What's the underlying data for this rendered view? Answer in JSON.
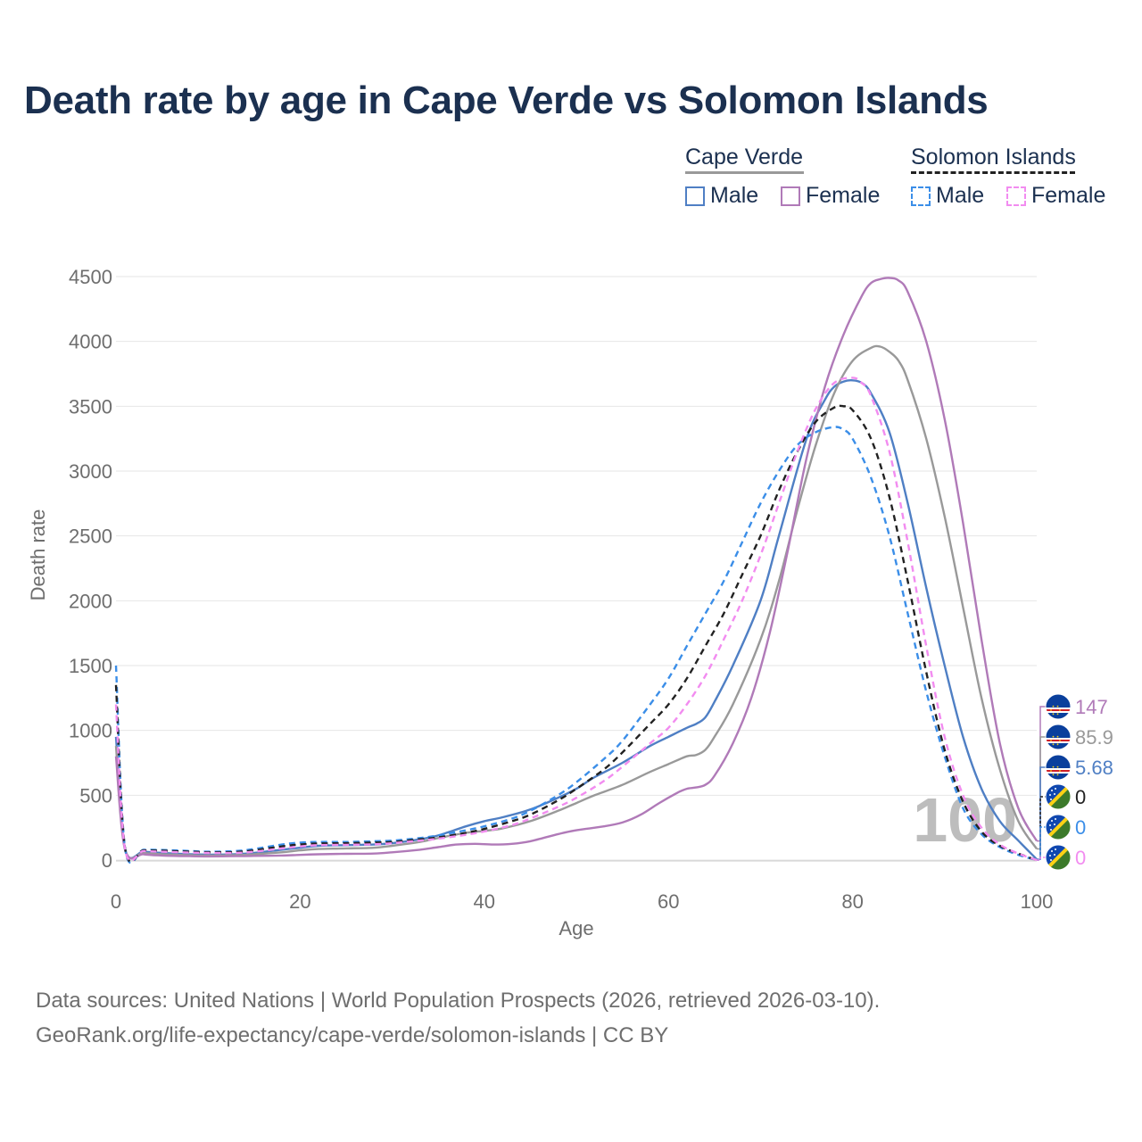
{
  "title": "Death rate by age in Cape Verde vs Solomon Islands",
  "legend": {
    "groups": [
      {
        "name": "Cape Verde",
        "line_color": "#999999",
        "dashed": false,
        "entries": [
          {
            "label": "Male",
            "color": "#4f7fc4"
          },
          {
            "label": "Female",
            "color": "#b07ab8"
          }
        ]
      },
      {
        "name": "Solomon Islands",
        "line_color": "#222222",
        "dashed": true,
        "entries": [
          {
            "label": "Male",
            "color": "#3b8ee8"
          },
          {
            "label": "Female",
            "color": "#f28cf0"
          }
        ]
      }
    ]
  },
  "footer": {
    "line1": "Data sources: United Nations | World Population Prospects (2026, retrieved 2026-03-10).",
    "line2": "GeoRank.org/life-expectancy/cape-verde/solomon-islands | CC BY"
  },
  "chart_data": {
    "type": "line",
    "title": "Death rate by age in Cape Verde vs Solomon Islands",
    "xlabel": "Age",
    "ylabel": "Death rate",
    "xlim": [
      0,
      100
    ],
    "ylim": [
      0,
      4500
    ],
    "xticks": [
      0,
      20,
      40,
      60,
      80,
      100
    ],
    "yticks": [
      0,
      500,
      1000,
      1500,
      2000,
      2500,
      3000,
      3500,
      4000,
      4500
    ],
    "grid": true,
    "watermark_age": "100",
    "series": [
      {
        "name": "Cape Verde Male",
        "country": "Cape Verde",
        "sex": "Male",
        "color": "#4f7fc4",
        "dashed": false,
        "end_label": "5.68",
        "points": [
          [
            0,
            950
          ],
          [
            1,
            85
          ],
          [
            3,
            65
          ],
          [
            5,
            55
          ],
          [
            8,
            45
          ],
          [
            10,
            42
          ],
          [
            13,
            45
          ],
          [
            15,
            55
          ],
          [
            18,
            80
          ],
          [
            20,
            95
          ],
          [
            22,
            110
          ],
          [
            25,
            115
          ],
          [
            28,
            120
          ],
          [
            30,
            130
          ],
          [
            33,
            160
          ],
          [
            35,
            190
          ],
          [
            38,
            260
          ],
          [
            40,
            300
          ],
          [
            42,
            330
          ],
          [
            45,
            390
          ],
          [
            48,
            480
          ],
          [
            50,
            550
          ],
          [
            52,
            640
          ],
          [
            55,
            750
          ],
          [
            58,
            880
          ],
          [
            60,
            950
          ],
          [
            62,
            1020
          ],
          [
            63,
            1050
          ],
          [
            64,
            1100
          ],
          [
            65,
            1220
          ],
          [
            67,
            1500
          ],
          [
            70,
            2000
          ],
          [
            72,
            2500
          ],
          [
            75,
            3250
          ],
          [
            77,
            3550
          ],
          [
            78,
            3650
          ],
          [
            79,
            3690
          ],
          [
            80,
            3700
          ],
          [
            81,
            3680
          ],
          [
            82,
            3600
          ],
          [
            84,
            3300
          ],
          [
            86,
            2750
          ],
          [
            88,
            2100
          ],
          [
            90,
            1500
          ],
          [
            92,
            950
          ],
          [
            94,
            550
          ],
          [
            96,
            300
          ],
          [
            98,
            150
          ],
          [
            100,
            6
          ]
        ]
      },
      {
        "name": "Cape Verde Total",
        "country": "Cape Verde",
        "sex": "Total",
        "color": "#999999",
        "dashed": false,
        "end_label": "85.9",
        "points": [
          [
            0,
            880
          ],
          [
            1,
            80
          ],
          [
            3,
            55
          ],
          [
            5,
            45
          ],
          [
            8,
            38
          ],
          [
            10,
            35
          ],
          [
            13,
            38
          ],
          [
            15,
            45
          ],
          [
            18,
            60
          ],
          [
            20,
            75
          ],
          [
            22,
            85
          ],
          [
            25,
            90
          ],
          [
            28,
            95
          ],
          [
            30,
            110
          ],
          [
            33,
            140
          ],
          [
            35,
            170
          ],
          [
            38,
            210
          ],
          [
            40,
            225
          ],
          [
            42,
            245
          ],
          [
            45,
            300
          ],
          [
            48,
            380
          ],
          [
            50,
            440
          ],
          [
            52,
            500
          ],
          [
            55,
            580
          ],
          [
            58,
            680
          ],
          [
            60,
            740
          ],
          [
            62,
            800
          ],
          [
            63,
            810
          ],
          [
            64,
            850
          ],
          [
            65,
            950
          ],
          [
            67,
            1200
          ],
          [
            70,
            1700
          ],
          [
            72,
            2150
          ],
          [
            74,
            2700
          ],
          [
            76,
            3200
          ],
          [
            78,
            3600
          ],
          [
            80,
            3850
          ],
          [
            82,
            3950
          ],
          [
            83,
            3960
          ],
          [
            84,
            3920
          ],
          [
            85,
            3850
          ],
          [
            86,
            3700
          ],
          [
            88,
            3250
          ],
          [
            90,
            2650
          ],
          [
            92,
            1950
          ],
          [
            94,
            1250
          ],
          [
            96,
            700
          ],
          [
            98,
            300
          ],
          [
            100,
            86
          ]
        ]
      },
      {
        "name": "Cape Verde Female",
        "country": "Cape Verde",
        "sex": "Female",
        "color": "#b07ab8",
        "dashed": false,
        "end_label": "147",
        "points": [
          [
            0,
            800
          ],
          [
            1,
            75
          ],
          [
            3,
            45
          ],
          [
            5,
            35
          ],
          [
            8,
            30
          ],
          [
            10,
            28
          ],
          [
            13,
            30
          ],
          [
            15,
            32
          ],
          [
            18,
            35
          ],
          [
            20,
            40
          ],
          [
            22,
            45
          ],
          [
            25,
            48
          ],
          [
            28,
            50
          ],
          [
            30,
            60
          ],
          [
            33,
            80
          ],
          [
            35,
            100
          ],
          [
            37,
            120
          ],
          [
            39,
            125
          ],
          [
            41,
            120
          ],
          [
            43,
            125
          ],
          [
            45,
            145
          ],
          [
            48,
            200
          ],
          [
            50,
            230
          ],
          [
            53,
            260
          ],
          [
            55,
            290
          ],
          [
            57,
            350
          ],
          [
            59,
            440
          ],
          [
            61,
            520
          ],
          [
            62,
            550
          ],
          [
            63,
            560
          ],
          [
            64,
            580
          ],
          [
            65,
            650
          ],
          [
            67,
            900
          ],
          [
            69,
            1250
          ],
          [
            71,
            1750
          ],
          [
            73,
            2400
          ],
          [
            75,
            3100
          ],
          [
            77,
            3650
          ],
          [
            79,
            4050
          ],
          [
            81,
            4350
          ],
          [
            82,
            4450
          ],
          [
            83,
            4480
          ],
          [
            84,
            4490
          ],
          [
            85,
            4470
          ],
          [
            86,
            4380
          ],
          [
            88,
            4000
          ],
          [
            90,
            3400
          ],
          [
            92,
            2600
          ],
          [
            94,
            1700
          ],
          [
            96,
            900
          ],
          [
            98,
            400
          ],
          [
            100,
            147
          ]
        ]
      },
      {
        "name": "Solomon Islands Male",
        "country": "Solomon Islands",
        "sex": "Male",
        "color": "#3b8ee8",
        "dashed": true,
        "end_label": "0",
        "points": [
          [
            0,
            1500
          ],
          [
            1,
            85
          ],
          [
            3,
            80
          ],
          [
            5,
            78
          ],
          [
            8,
            70
          ],
          [
            10,
            65
          ],
          [
            13,
            70
          ],
          [
            15,
            85
          ],
          [
            18,
            120
          ],
          [
            20,
            135
          ],
          [
            22,
            140
          ],
          [
            25,
            140
          ],
          [
            28,
            145
          ],
          [
            30,
            150
          ],
          [
            33,
            170
          ],
          [
            35,
            190
          ],
          [
            38,
            230
          ],
          [
            40,
            260
          ],
          [
            43,
            320
          ],
          [
            45,
            380
          ],
          [
            48,
            500
          ],
          [
            50,
            600
          ],
          [
            53,
            780
          ],
          [
            55,
            920
          ],
          [
            58,
            1200
          ],
          [
            60,
            1400
          ],
          [
            62,
            1650
          ],
          [
            64,
            1900
          ],
          [
            66,
            2150
          ],
          [
            68,
            2450
          ],
          [
            70,
            2750
          ],
          [
            72,
            3000
          ],
          [
            74,
            3200
          ],
          [
            76,
            3300
          ],
          [
            78,
            3340
          ],
          [
            79,
            3320
          ],
          [
            80,
            3250
          ],
          [
            82,
            2950
          ],
          [
            84,
            2500
          ],
          [
            86,
            1900
          ],
          [
            88,
            1300
          ],
          [
            90,
            800
          ],
          [
            92,
            400
          ],
          [
            94,
            200
          ],
          [
            96,
            100
          ],
          [
            98,
            40
          ],
          [
            100,
            0
          ]
        ]
      },
      {
        "name": "Solomon Islands Total",
        "country": "Solomon Islands",
        "sex": "Total",
        "color": "#222222",
        "dashed": true,
        "end_label": "0",
        "points": [
          [
            0,
            1350
          ],
          [
            1,
            85
          ],
          [
            3,
            75
          ],
          [
            5,
            72
          ],
          [
            8,
            65
          ],
          [
            10,
            60
          ],
          [
            13,
            62
          ],
          [
            15,
            75
          ],
          [
            18,
            105
          ],
          [
            20,
            120
          ],
          [
            22,
            128
          ],
          [
            25,
            130
          ],
          [
            28,
            135
          ],
          [
            30,
            140
          ],
          [
            33,
            160
          ],
          [
            35,
            175
          ],
          [
            38,
            210
          ],
          [
            40,
            240
          ],
          [
            43,
            300
          ],
          [
            45,
            350
          ],
          [
            48,
            460
          ],
          [
            50,
            550
          ],
          [
            53,
            700
          ],
          [
            55,
            830
          ],
          [
            58,
            1050
          ],
          [
            60,
            1200
          ],
          [
            62,
            1400
          ],
          [
            64,
            1650
          ],
          [
            66,
            1900
          ],
          [
            68,
            2200
          ],
          [
            70,
            2500
          ],
          [
            72,
            2850
          ],
          [
            74,
            3150
          ],
          [
            76,
            3380
          ],
          [
            78,
            3490
          ],
          [
            79,
            3500
          ],
          [
            80,
            3470
          ],
          [
            82,
            3250
          ],
          [
            84,
            2800
          ],
          [
            86,
            2150
          ],
          [
            88,
            1450
          ],
          [
            90,
            850
          ],
          [
            92,
            450
          ],
          [
            94,
            220
          ],
          [
            96,
            110
          ],
          [
            98,
            50
          ],
          [
            100,
            0
          ]
        ]
      },
      {
        "name": "Solomon Islands Female",
        "country": "Solomon Islands",
        "sex": "Female",
        "color": "#f28cf0",
        "dashed": true,
        "end_label": "0",
        "points": [
          [
            0,
            1200
          ],
          [
            1,
            80
          ],
          [
            3,
            70
          ],
          [
            5,
            65
          ],
          [
            8,
            58
          ],
          [
            10,
            55
          ],
          [
            13,
            55
          ],
          [
            15,
            65
          ],
          [
            18,
            90
          ],
          [
            20,
            105
          ],
          [
            22,
            115
          ],
          [
            25,
            118
          ],
          [
            28,
            122
          ],
          [
            30,
            130
          ],
          [
            33,
            150
          ],
          [
            35,
            165
          ],
          [
            38,
            195
          ],
          [
            40,
            220
          ],
          [
            43,
            270
          ],
          [
            45,
            320
          ],
          [
            48,
            410
          ],
          [
            50,
            480
          ],
          [
            53,
            610
          ],
          [
            55,
            720
          ],
          [
            58,
            900
          ],
          [
            60,
            1020
          ],
          [
            62,
            1200
          ],
          [
            64,
            1420
          ],
          [
            66,
            1700
          ],
          [
            68,
            2000
          ],
          [
            70,
            2350
          ],
          [
            72,
            2750
          ],
          [
            74,
            3150
          ],
          [
            76,
            3480
          ],
          [
            78,
            3680
          ],
          [
            80,
            3720
          ],
          [
            81,
            3680
          ],
          [
            82,
            3580
          ],
          [
            84,
            3150
          ],
          [
            86,
            2450
          ],
          [
            88,
            1650
          ],
          [
            90,
            950
          ],
          [
            92,
            500
          ],
          [
            94,
            250
          ],
          [
            96,
            120
          ],
          [
            98,
            50
          ],
          [
            100,
            0
          ]
        ]
      }
    ]
  }
}
